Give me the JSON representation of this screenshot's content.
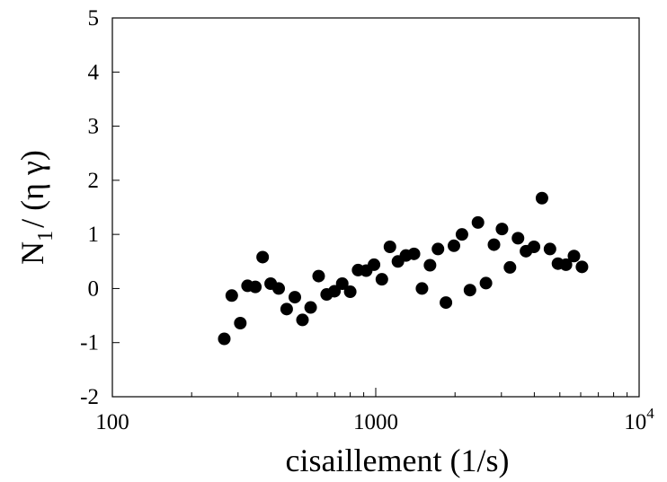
{
  "chart_data": {
    "type": "scatter",
    "xscale": "log",
    "xlim": [
      100,
      10000
    ],
    "ylim": [
      -2,
      5
    ],
    "grid": false,
    "legend": "none",
    "marker_color": "#000000",
    "xlabel": "cisaillement (1/s)",
    "ylabel_parts": {
      "n": "N",
      "sub": "1",
      "rest": "/ (η γ)"
    },
    "x_tick_labels": [
      {
        "value": 100,
        "base": "100",
        "sup": ""
      },
      {
        "value": 1000,
        "base": "1000",
        "sup": ""
      },
      {
        "value": 10000,
        "base": "10",
        "sup": "4"
      }
    ],
    "y_ticks": [
      -2,
      -1,
      0,
      1,
      2,
      3,
      4,
      5
    ],
    "y_tick_labels": [
      "-2",
      "-1",
      "0",
      "1",
      "2",
      "3",
      "4",
      "5"
    ],
    "points": [
      {
        "x": 266,
        "y": -0.93
      },
      {
        "x": 284,
        "y": -0.13
      },
      {
        "x": 306,
        "y": -0.64
      },
      {
        "x": 326,
        "y": 0.05
      },
      {
        "x": 349,
        "y": 0.03
      },
      {
        "x": 372,
        "y": 0.58
      },
      {
        "x": 399,
        "y": 0.09
      },
      {
        "x": 428,
        "y": 0.0
      },
      {
        "x": 459,
        "y": -0.38
      },
      {
        "x": 493,
        "y": -0.16
      },
      {
        "x": 527,
        "y": -0.58
      },
      {
        "x": 566,
        "y": -0.35
      },
      {
        "x": 607,
        "y": 0.23
      },
      {
        "x": 651,
        "y": -0.11
      },
      {
        "x": 697,
        "y": -0.05
      },
      {
        "x": 746,
        "y": 0.09
      },
      {
        "x": 800,
        "y": -0.06
      },
      {
        "x": 857,
        "y": 0.34
      },
      {
        "x": 920,
        "y": 0.33
      },
      {
        "x": 985,
        "y": 0.44
      },
      {
        "x": 1055,
        "y": 0.17
      },
      {
        "x": 1132,
        "y": 0.77
      },
      {
        "x": 1214,
        "y": 0.5
      },
      {
        "x": 1302,
        "y": 0.61
      },
      {
        "x": 1397,
        "y": 0.64
      },
      {
        "x": 1498,
        "y": 0.0
      },
      {
        "x": 1607,
        "y": 0.43
      },
      {
        "x": 1723,
        "y": 0.73
      },
      {
        "x": 1847,
        "y": -0.26
      },
      {
        "x": 1981,
        "y": 0.79
      },
      {
        "x": 2125,
        "y": 1.0
      },
      {
        "x": 2279,
        "y": -0.03
      },
      {
        "x": 2444,
        "y": 1.22
      },
      {
        "x": 2621,
        "y": 0.1
      },
      {
        "x": 2811,
        "y": 0.81
      },
      {
        "x": 3015,
        "y": 1.1
      },
      {
        "x": 3233,
        "y": 0.39
      },
      {
        "x": 3468,
        "y": 0.93
      },
      {
        "x": 3719,
        "y": 0.69
      },
      {
        "x": 3988,
        "y": 0.77
      },
      {
        "x": 4277,
        "y": 1.67
      },
      {
        "x": 4587,
        "y": 0.73
      },
      {
        "x": 4919,
        "y": 0.46
      },
      {
        "x": 5275,
        "y": 0.44
      },
      {
        "x": 5657,
        "y": 0.6
      },
      {
        "x": 6067,
        "y": 0.4
      }
    ]
  }
}
